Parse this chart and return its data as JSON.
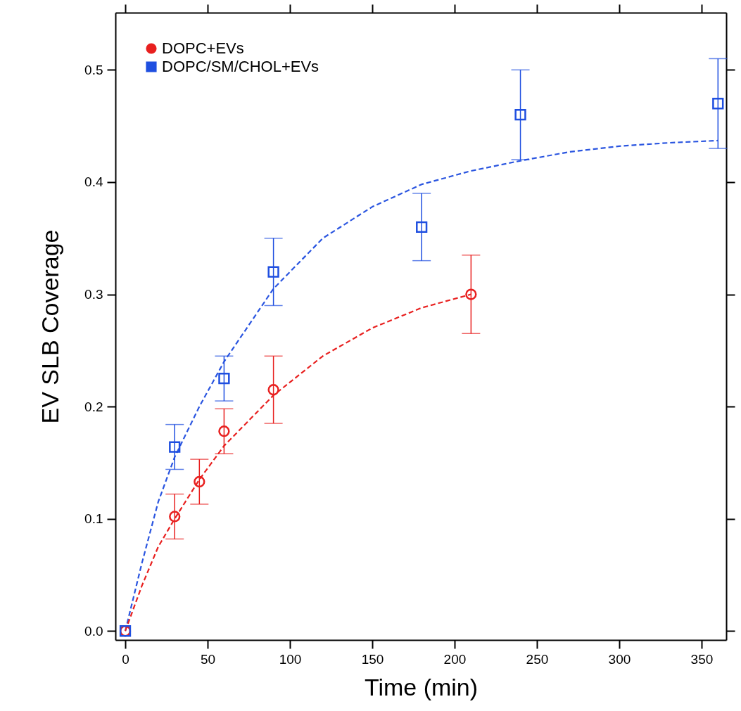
{
  "chart_data": {
    "type": "scatter",
    "xlabel": "Time (min)",
    "ylabel": "EV SLB Coverage",
    "xlim": [
      -6,
      365
    ],
    "ylim": [
      -0.008,
      0.551
    ],
    "xticks": [
      0,
      50,
      100,
      150,
      200,
      250,
      300,
      350
    ],
    "yticks": [
      {
        "value": 0,
        "label": "0.0"
      },
      0.1,
      0.2,
      0.3,
      0.4,
      0.5
    ],
    "grid": false,
    "legend": "top left",
    "series": [
      {
        "type": "line",
        "color": "#2a55e0",
        "line_style": "dashed",
        "marker": "none",
        "x": [
          0,
          10,
          20,
          30,
          45,
          60,
          90,
          120,
          150,
          180,
          210,
          240,
          270,
          300,
          330,
          360
        ],
        "values": [
          0,
          0.06,
          0.115,
          0.155,
          0.2,
          0.24,
          0.305,
          0.35,
          0.378,
          0.398,
          0.41,
          0.419,
          0.427,
          0.432,
          0.435,
          0.437
        ]
      },
      {
        "type": "line",
        "color": "#e8201f",
        "line_style": "dashed",
        "marker": "none",
        "x": [
          0,
          10,
          20,
          30,
          45,
          60,
          90,
          120,
          150,
          180,
          210
        ],
        "values": [
          0,
          0.04,
          0.075,
          0.1,
          0.135,
          0.165,
          0.21,
          0.245,
          0.27,
          0.288,
          0.3
        ]
      },
      {
        "name": "DOPC+EVs",
        "color": "#e8201f",
        "marker": "circle",
        "x": [
          0,
          30,
          45,
          60,
          90,
          210
        ],
        "values": [
          0,
          0.102,
          0.133,
          0.178,
          0.215,
          0.3
        ],
        "errors": [
          null,
          0.02,
          0.02,
          0.02,
          0.03,
          0.035
        ]
      },
      {
        "name": "DOPC/SM/CHOL+EVs",
        "color": "#1f4fe0",
        "marker": "square",
        "x": [
          0,
          30,
          60,
          90,
          180,
          240,
          360
        ],
        "values": [
          0,
          0.164,
          0.225,
          0.32,
          0.36,
          0.46,
          0.47
        ],
        "errors": [
          null,
          0.02,
          0.02,
          0.03,
          0.03,
          0.04,
          0.04
        ]
      }
    ]
  }
}
